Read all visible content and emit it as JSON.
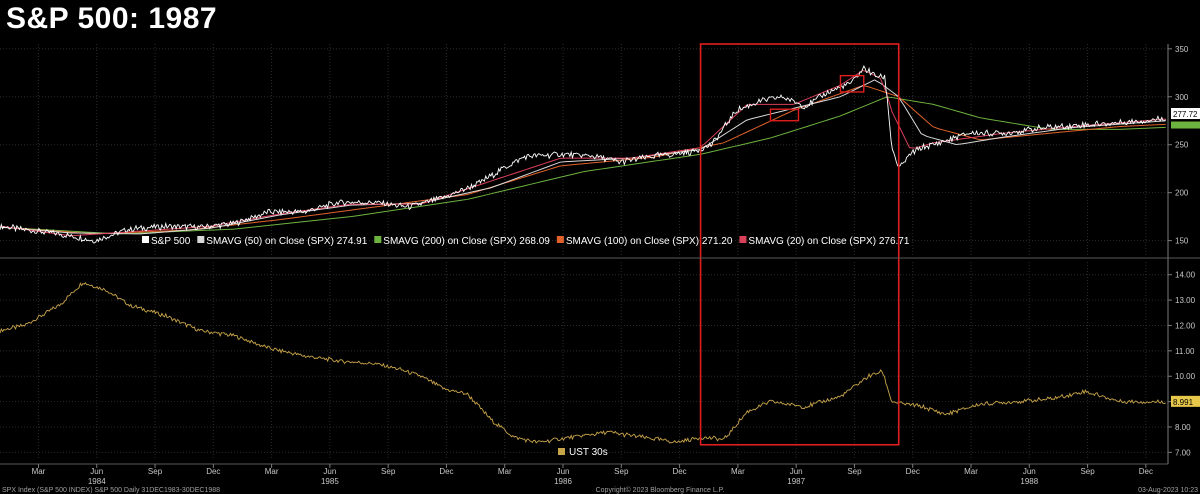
{
  "title": "S&P 500: 1987",
  "colors": {
    "background": "#000000",
    "spx": "#ffffff",
    "sma50": "#d8d8d8",
    "sma200": "#6db33f",
    "sma100": "#e0622a",
    "sma20": "#d9405a",
    "ust": "#c9a54a",
    "highlight": "#e01e1e",
    "grid": "#2a2a2a"
  },
  "chart_data": [
    {
      "type": "line",
      "name": "upper-panel",
      "ylim": [
        135,
        355
      ],
      "y_ticks": [
        150,
        200,
        250,
        300,
        350
      ],
      "grid": true,
      "legend_position": "bottom",
      "series": [
        {
          "name": "S&P 500",
          "color": "#ffffff",
          "x": [
            1983.995,
            1984.08,
            1984.25,
            1984.4,
            1984.55,
            1984.7,
            1984.85,
            1985.0,
            1985.15,
            1985.3,
            1985.45,
            1985.6,
            1985.75,
            1985.9,
            1986.05,
            1986.15,
            1986.25,
            1986.4,
            1986.55,
            1986.65,
            1986.8,
            1986.95,
            1987.05,
            1987.15,
            1987.25,
            1987.35,
            1987.45,
            1987.55,
            1987.65,
            1987.7,
            1987.75,
            1987.79,
            1987.8,
            1987.82,
            1987.85,
            1987.9,
            1987.95,
            1988.0,
            1988.15,
            1988.3,
            1988.45,
            1988.6,
            1988.75,
            1988.9,
            1988.995
          ],
          "y": [
            165,
            162,
            157,
            150,
            162,
            165,
            164,
            168,
            180,
            180,
            190,
            190,
            185,
            195,
            210,
            225,
            238,
            240,
            238,
            232,
            238,
            242,
            250,
            285,
            295,
            300,
            290,
            305,
            315,
            330,
            322,
            320,
            300,
            248,
            225,
            240,
            247,
            250,
            262,
            262,
            267,
            270,
            272,
            275,
            277.72
          ]
        },
        {
          "name": "SMAVG (50)  on Close (SPX)",
          "color": "#d8d8d8",
          "last": 274.91,
          "x": [
            1984.0,
            1984.3,
            1984.6,
            1984.9,
            1985.2,
            1985.5,
            1985.8,
            1986.1,
            1986.4,
            1986.7,
            1987.0,
            1987.2,
            1987.4,
            1987.6,
            1987.75,
            1987.85,
            1987.95,
            1988.1,
            1988.3,
            1988.6,
            1988.995
          ],
          "y": [
            164,
            158,
            157,
            163,
            177,
            187,
            189,
            205,
            232,
            236,
            245,
            276,
            288,
            300,
            318,
            300,
            260,
            250,
            258,
            268,
            274.91
          ]
        },
        {
          "name": "SMAVG (200)  on Close (SPX)",
          "color": "#6db33f",
          "last": 268.09,
          "x": [
            1984.0,
            1984.5,
            1985.0,
            1985.5,
            1986.0,
            1986.5,
            1987.0,
            1987.3,
            1987.6,
            1987.8,
            1988.0,
            1988.2,
            1988.5,
            1988.8,
            1988.995
          ],
          "y": [
            164,
            157,
            162,
            175,
            193,
            222,
            240,
            257,
            280,
            300,
            292,
            278,
            266,
            266,
            268.09
          ]
        },
        {
          "name": "SMAVG (100)  on Close (SPX)",
          "color": "#e0622a",
          "last": 271.2,
          "x": [
            1984.0,
            1984.4,
            1984.8,
            1985.2,
            1985.6,
            1986.0,
            1986.4,
            1986.8,
            1987.1,
            1987.4,
            1987.7,
            1987.85,
            1988.0,
            1988.2,
            1988.5,
            1988.8,
            1988.995
          ],
          "y": [
            164,
            157,
            161,
            172,
            185,
            198,
            228,
            237,
            252,
            286,
            312,
            300,
            268,
            255,
            262,
            269,
            271.2
          ]
        },
        {
          "name": "SMAVG (20)  on Close (SPX)",
          "color": "#d9405a",
          "last": 276.71,
          "x": [
            1984.0,
            1984.3,
            1984.6,
            1984.9,
            1985.2,
            1985.5,
            1985.8,
            1986.1,
            1986.4,
            1986.7,
            1987.0,
            1987.2,
            1987.4,
            1987.6,
            1987.7,
            1987.78,
            1987.82,
            1987.9,
            1988.0,
            1988.3,
            1988.6,
            1988.995
          ],
          "y": [
            165,
            155,
            160,
            165,
            178,
            188,
            188,
            212,
            236,
            236,
            247,
            292,
            292,
            312,
            328,
            318,
            285,
            245,
            252,
            262,
            269,
            276.71
          ]
        }
      ],
      "last_value_tag": "277.72"
    },
    {
      "type": "line",
      "name": "lower-panel",
      "ylim": [
        6.7,
        14.5
      ],
      "y_ticks": [
        "14.00",
        "13.00",
        "12.00",
        "11.00",
        "10.00",
        "9.00",
        "8.00",
        "7.00"
      ],
      "grid": true,
      "series": [
        {
          "name": "UST 30s",
          "color": "#c9a54a",
          "x": [
            1983.995,
            1984.1,
            1984.25,
            1984.35,
            1984.45,
            1984.55,
            1984.7,
            1984.85,
            1985.0,
            1985.15,
            1985.3,
            1985.45,
            1985.6,
            1985.7,
            1985.8,
            1985.9,
            1986.0,
            1986.1,
            1986.2,
            1986.3,
            1986.45,
            1986.6,
            1986.75,
            1986.9,
            1987.0,
            1987.1,
            1987.2,
            1987.3,
            1987.45,
            1987.6,
            1987.72,
            1987.78,
            1987.82,
            1987.88,
            1987.95,
            1988.05,
            1988.2,
            1988.35,
            1988.5,
            1988.65,
            1988.8,
            1988.995
          ],
          "y": [
            11.8,
            12.0,
            12.8,
            13.7,
            13.4,
            12.8,
            12.4,
            11.8,
            11.6,
            11.1,
            10.8,
            10.6,
            10.5,
            10.3,
            10.0,
            9.5,
            9.3,
            8.3,
            7.6,
            7.4,
            7.6,
            7.8,
            7.6,
            7.4,
            7.6,
            7.5,
            8.6,
            9.0,
            8.8,
            9.2,
            10.0,
            10.2,
            9.0,
            8.9,
            8.8,
            8.5,
            8.9,
            9.0,
            9.1,
            9.4,
            9.0,
            8.991
          ]
        }
      ],
      "last_value_tag": "8.991"
    }
  ],
  "legend_upper": [
    {
      "label": "S&P 500",
      "color": "#ffffff",
      "value": ""
    },
    {
      "label": "SMAVG (50)  on Close (SPX)",
      "color": "#d8d8d8",
      "value": "274.91"
    },
    {
      "label": "SMAVG (200)  on Close (SPX)",
      "color": "#6db33f",
      "value": "268.09"
    },
    {
      "label": "SMAVG (100)  on Close (SPX)",
      "color": "#e0622a",
      "value": "271.20"
    },
    {
      "label": "SMAVG (20)  on Close (SPX)",
      "color": "#d9405a",
      "value": "276.71"
    }
  ],
  "legend_lower": [
    {
      "label": "UST 30s",
      "color": "#c9a54a"
    }
  ],
  "x_axis": {
    "months": [
      {
        "label": "Mar",
        "x": 1984.16
      },
      {
        "label": "Jun",
        "x": 1984.41
      },
      {
        "label": "Sep",
        "x": 1984.66
      },
      {
        "label": "Dec",
        "x": 1984.91
      },
      {
        "label": "Mar",
        "x": 1985.16
      },
      {
        "label": "Jun",
        "x": 1985.41
      },
      {
        "label": "Sep",
        "x": 1985.66
      },
      {
        "label": "Dec",
        "x": 1985.91
      },
      {
        "label": "Mar",
        "x": 1986.16
      },
      {
        "label": "Jun",
        "x": 1986.41
      },
      {
        "label": "Sep",
        "x": 1986.66
      },
      {
        "label": "Dec",
        "x": 1986.91
      },
      {
        "label": "Mar",
        "x": 1987.16
      },
      {
        "label": "Jun",
        "x": 1987.41
      },
      {
        "label": "Sep",
        "x": 1987.66
      },
      {
        "label": "Dec",
        "x": 1987.91
      },
      {
        "label": "Mar",
        "x": 1988.16
      },
      {
        "label": "Jun",
        "x": 1988.41
      },
      {
        "label": "Sep",
        "x": 1988.66
      },
      {
        "label": "Dec",
        "x": 1988.91
      }
    ],
    "years": [
      {
        "label": "1984",
        "x": 1984.41
      },
      {
        "label": "1985",
        "x": 1985.41
      },
      {
        "label": "1986",
        "x": 1986.41
      },
      {
        "label": "1987",
        "x": 1987.41
      },
      {
        "label": "1988",
        "x": 1988.41
      }
    ]
  },
  "highlights": [
    {
      "x0": 1987.0,
      "x1": 1987.85,
      "y0": 7.3,
      "y1": 355,
      "panel": "both"
    },
    {
      "x0": 1987.3,
      "x1": 1987.42,
      "y0": 275,
      "y1": 287,
      "panel": "upper"
    },
    {
      "x0": 1987.6,
      "x1": 1987.7,
      "y0": 305,
      "y1": 322,
      "panel": "upper"
    }
  ],
  "footer": {
    "left": "SPX Index (S&P 500 INDEX) S&P 500  Daily 31DEC1983-30DEC1988",
    "center": "Copyright© 2023 Bloomberg Finance L.P.",
    "right": "03-Aug-2023 10:23"
  }
}
